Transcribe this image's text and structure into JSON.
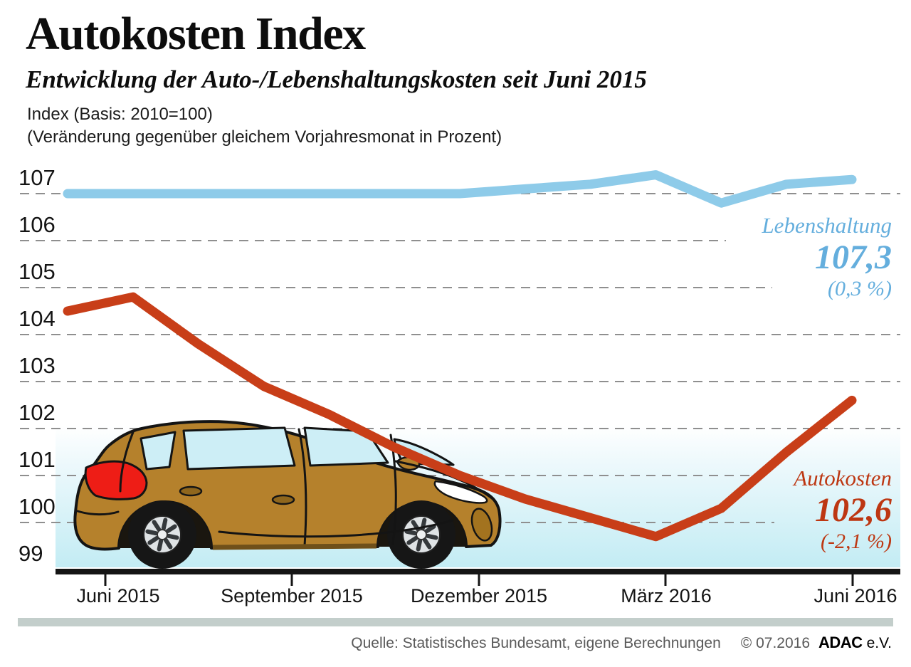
{
  "header": {
    "title": "Autokosten Index",
    "subtitle": "Entwicklung der Auto-/Lebenshaltungskosten seit Juni 2015",
    "note_line1": "Index (Basis: 2010=100)",
    "note_line2": "(Veränderung gegenüber gleichem Vorjahresmonat in Prozent)"
  },
  "legend": {
    "lebenshaltung": {
      "name": "Lebenshaltung",
      "value": "107,3",
      "change": "(0,3 %)",
      "color": "#64aedd"
    },
    "autokosten": {
      "name": "Autokosten",
      "value": "102,6",
      "change": "(-2,1 %)",
      "color": "#bd3712"
    }
  },
  "footer": {
    "source": "Quelle: Statistisches Bundesamt, eigene Berechnungen",
    "copyright": "© 07.2016",
    "brand": "ADAC",
    "brand_suffix": "e.V."
  },
  "decoration": {
    "illustration": "brown hatchback car, side view"
  },
  "chart_data": {
    "type": "line",
    "title": "Autokosten Index",
    "x_tick_labels": [
      "Juni 2015",
      "September 2015",
      "Dezember 2015",
      "März 2016",
      "Juni 2016"
    ],
    "x_monthly_points": [
      "Jun 2015",
      "Jul 2015",
      "Aug 2015",
      "Sep 2015",
      "Okt 2015",
      "Nov 2015",
      "Dez 2015",
      "Jan 2016",
      "Feb 2016",
      "Mär 2016",
      "Apr 2016",
      "Mai 2016",
      "Jun 2016"
    ],
    "y_ticks": [
      99,
      100,
      101,
      102,
      103,
      104,
      105,
      106,
      107
    ],
    "ylim": [
      99,
      107.8
    ],
    "grid": true,
    "legend_position": "right",
    "series": [
      {
        "name": "Lebenshaltung",
        "color": "#8ecbe9",
        "current_value": 107.3,
        "yoy_change_pct": 0.3,
        "values": [
          107.0,
          107.0,
          107.0,
          107.0,
          107.0,
          107.0,
          107.0,
          107.1,
          107.2,
          107.4,
          106.8,
          107.2,
          107.3
        ]
      },
      {
        "name": "Autokosten",
        "color": "#c83e18",
        "current_value": 102.6,
        "yoy_change_pct": -2.1,
        "values": [
          104.5,
          104.8,
          103.8,
          102.9,
          102.3,
          101.6,
          101.0,
          100.5,
          100.1,
          99.7,
          100.3,
          101.5,
          102.6
        ]
      }
    ]
  }
}
